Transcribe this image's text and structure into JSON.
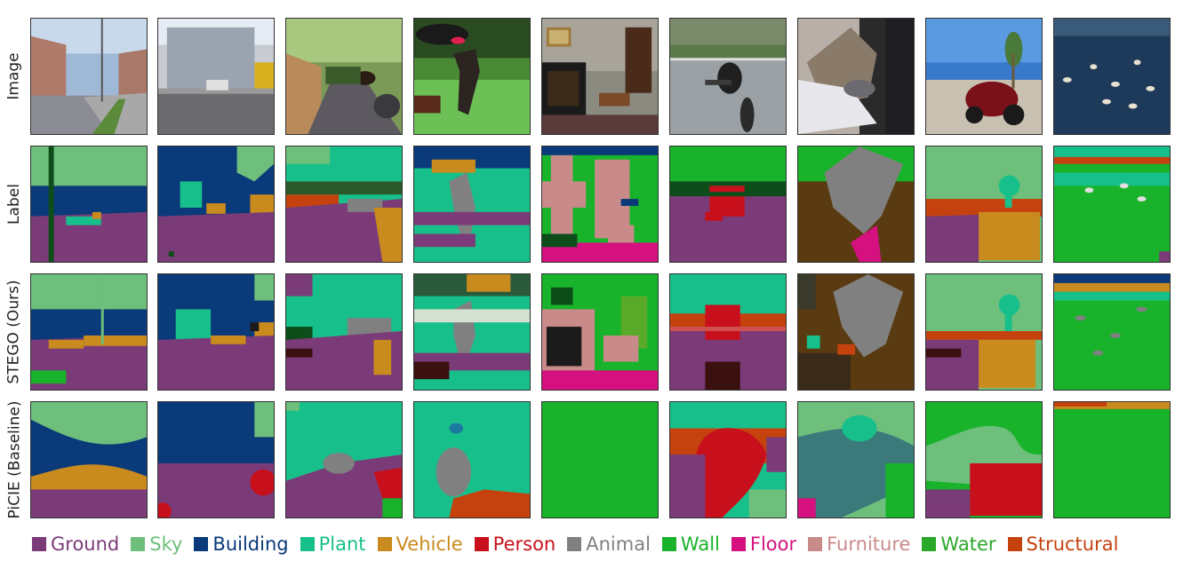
{
  "row_labels": [
    "Image",
    "Label",
    "STEGO (Ours)",
    "PiCIE (Baseline)"
  ],
  "legend": [
    {
      "label": "Ground",
      "color": "#7a3b78"
    },
    {
      "label": "Sky",
      "color": "#6dbf7b"
    },
    {
      "label": "Building",
      "color": "#0a3a7a"
    },
    {
      "label": "Plant",
      "color": "#17c08a"
    },
    {
      "label": "Vehicle",
      "color": "#c98a1e"
    },
    {
      "label": "Person",
      "color": "#c8101c"
    },
    {
      "label": "Animal",
      "color": "#808080"
    },
    {
      "label": "Wall",
      "color": "#18b32a"
    },
    {
      "label": "Floor",
      "color": "#d4117e"
    },
    {
      "label": "Furniture",
      "color": "#c98a8a"
    },
    {
      "label": "Water",
      "color": "#2aa82a"
    },
    {
      "label": "Structural",
      "color": "#c5420f"
    }
  ]
}
